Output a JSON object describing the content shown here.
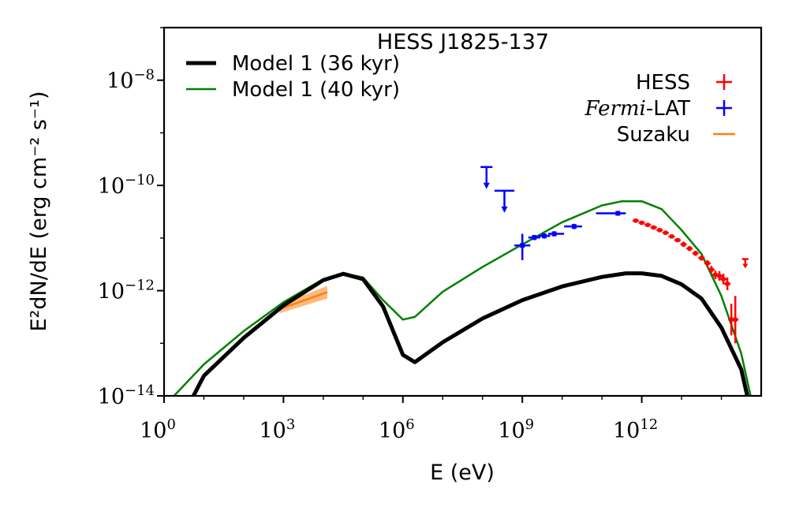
{
  "chart_data": {
    "type": "line",
    "title": "HESS J1825-137",
    "xlabel": "E (eV)",
    "ylabel": "E²dN/dE (erg cm⁻² s⁻¹)",
    "x_scale": "log",
    "y_scale": "log",
    "xlim": [
      1,
      1000000000000000.0
    ],
    "ylim": [
      1e-14,
      1e-07
    ],
    "x_ticks": [
      {
        "value": 1,
        "base": "10",
        "exp": "0"
      },
      {
        "value": 1000,
        "base": "10",
        "exp": "3"
      },
      {
        "value": 1000000,
        "base": "10",
        "exp": "6"
      },
      {
        "value": 1000000000,
        "base": "10",
        "exp": "9"
      },
      {
        "value": 1000000000000,
        "base": "10",
        "exp": "12"
      }
    ],
    "y_ticks": [
      {
        "value": 1e-08,
        "base": "10",
        "exp": "−8"
      },
      {
        "value": 1e-10,
        "base": "10",
        "exp": "−10"
      },
      {
        "value": 1e-12,
        "base": "10",
        "exp": "−12"
      },
      {
        "value": 1e-14,
        "base": "10",
        "exp": "−14"
      }
    ],
    "legend_left": {
      "placement": "top-left",
      "entries": [
        {
          "label": "Model 1 (36 kyr)",
          "color": "#000000",
          "style": "thick-line"
        },
        {
          "label": "Model 1 (40 kyr)",
          "color": "#008000",
          "style": "thin-line"
        }
      ]
    },
    "legend_right": {
      "placement": "top-right",
      "entries": [
        {
          "label": "HESS",
          "color": "#ff0000",
          "marker": "errorbar"
        },
        {
          "label_italic": "Fermi",
          "label": "-LAT",
          "color": "#0000ff",
          "marker": "errorbar"
        },
        {
          "label": "Suzaku",
          "color": "#ff7f0e",
          "marker": "line"
        }
      ]
    },
    "series": [
      {
        "name": "Model 1 (36 kyr)",
        "color": "#000000",
        "log_points": [
          [
            0.6,
            -14.2
          ],
          [
            1,
            -13.62
          ],
          [
            2,
            -12.9
          ],
          [
            3,
            -12.28
          ],
          [
            4,
            -11.8
          ],
          [
            4.5,
            -11.68
          ],
          [
            5,
            -11.78
          ],
          [
            5.5,
            -12.3
          ],
          [
            6,
            -13.22
          ],
          [
            6.3,
            -13.36
          ],
          [
            7,
            -12.98
          ],
          [
            8,
            -12.53
          ],
          [
            9,
            -12.18
          ],
          [
            10,
            -11.92
          ],
          [
            11,
            -11.74
          ],
          [
            11.6,
            -11.67
          ],
          [
            12,
            -11.67
          ],
          [
            12.5,
            -11.72
          ],
          [
            13,
            -11.88
          ],
          [
            13.5,
            -12.15
          ],
          [
            14,
            -12.7
          ],
          [
            14.5,
            -13.5
          ],
          [
            14.8,
            -14.5
          ],
          [
            14.95,
            -15.5
          ]
        ]
      },
      {
        "name": "Model 1 (40 kyr)",
        "color": "#008000",
        "log_points": [
          [
            0,
            -14.2
          ],
          [
            1,
            -13.4
          ],
          [
            2,
            -12.77
          ],
          [
            3,
            -12.22
          ],
          [
            4,
            -11.78
          ],
          [
            4.5,
            -11.67
          ],
          [
            5,
            -11.75
          ],
          [
            5.5,
            -12.18
          ],
          [
            6,
            -12.55
          ],
          [
            6.3,
            -12.5
          ],
          [
            7,
            -12.02
          ],
          [
            8,
            -11.55
          ],
          [
            9,
            -11.12
          ],
          [
            10,
            -10.7
          ],
          [
            11,
            -10.38
          ],
          [
            11.5,
            -10.3
          ],
          [
            12,
            -10.3
          ],
          [
            12.5,
            -10.45
          ],
          [
            13,
            -10.85
          ],
          [
            13.5,
            -11.3
          ],
          [
            14,
            -12.1
          ],
          [
            14.5,
            -13.2
          ],
          [
            14.85,
            -14.4
          ],
          [
            15,
            -15.5
          ]
        ]
      }
    ],
    "suzaku_band": {
      "log_x": [
        2.9,
        4.1
      ],
      "log_y_center": [
        -12.35,
        -12.03
      ],
      "log_halfwidth": [
        0.08,
        0.12
      ]
    },
    "fermi_points": [
      {
        "log_x": 9.0,
        "log_x_lo": 8.8,
        "log_x_hi": 9.2,
        "log_y": -11.14,
        "log_err_lo": 0.28,
        "log_err_hi": 0.22
      },
      {
        "log_x": 9.3,
        "log_x_lo": 9.15,
        "log_x_hi": 9.45,
        "log_y": -10.99,
        "log_err_lo": 0.05,
        "log_err_hi": 0.05
      },
      {
        "log_x": 9.55,
        "log_x_lo": 9.4,
        "log_x_hi": 9.7,
        "log_y": -10.96,
        "log_err_lo": 0.05,
        "log_err_hi": 0.05
      },
      {
        "log_x": 9.8,
        "log_x_lo": 9.65,
        "log_x_hi": 10.05,
        "log_y": -10.92,
        "log_err_lo": 0.05,
        "log_err_hi": 0.05
      },
      {
        "log_x": 10.3,
        "log_x_lo": 10.05,
        "log_x_hi": 10.5,
        "log_y": -10.78,
        "log_err_lo": 0.05,
        "log_err_hi": 0.05
      },
      {
        "log_x": 11.4,
        "log_x_lo": 10.85,
        "log_x_hi": 11.6,
        "log_y": -10.53,
        "log_err_lo": 0.03,
        "log_err_hi": 0.03
      }
    ],
    "fermi_upper_limits": [
      {
        "log_x": 8.1,
        "log_x_lo": 7.95,
        "log_x_hi": 8.25,
        "log_y": -9.65
      },
      {
        "log_x": 8.55,
        "log_x_lo": 8.3,
        "log_x_hi": 8.8,
        "log_y": -10.1
      }
    ],
    "hess_points": [
      {
        "log_x": 11.85,
        "log_y": -10.67,
        "log_err": 0.04
      },
      {
        "log_x": 12.0,
        "log_y": -10.71,
        "log_err": 0.04
      },
      {
        "log_x": 12.15,
        "log_y": -10.75,
        "log_err": 0.04
      },
      {
        "log_x": 12.3,
        "log_y": -10.8,
        "log_err": 0.04
      },
      {
        "log_x": 12.45,
        "log_y": -10.85,
        "log_err": 0.04
      },
      {
        "log_x": 12.6,
        "log_y": -10.9,
        "log_err": 0.04
      },
      {
        "log_x": 12.75,
        "log_y": -10.97,
        "log_err": 0.04
      },
      {
        "log_x": 12.9,
        "log_y": -11.04,
        "log_err": 0.04
      },
      {
        "log_x": 13.05,
        "log_y": -11.12,
        "log_err": 0.05
      },
      {
        "log_x": 13.2,
        "log_y": -11.2,
        "log_err": 0.05
      },
      {
        "log_x": 13.35,
        "log_y": -11.29,
        "log_err": 0.05
      },
      {
        "log_x": 13.5,
        "log_y": -11.38,
        "log_err": 0.05
      },
      {
        "log_x": 13.65,
        "log_y": -11.48,
        "log_err": 0.06
      },
      {
        "log_x": 13.75,
        "log_y": -11.6,
        "log_err": 0.07
      },
      {
        "log_x": 13.85,
        "log_y": -11.7,
        "log_err": 0.08
      },
      {
        "log_x": 13.95,
        "log_y": -11.72,
        "log_err": 0.09
      },
      {
        "log_x": 14.05,
        "log_y": -11.78,
        "log_err": 0.1
      },
      {
        "log_x": 14.15,
        "log_y": -11.87,
        "log_err": 0.12
      },
      {
        "log_x": 14.25,
        "log_y": -12.55,
        "log_err": 0.3
      },
      {
        "log_x": 14.35,
        "log_y": -12.55,
        "log_err": 0.45
      }
    ],
    "hess_upper_limits": [
      {
        "log_x": 14.6,
        "log_y": -11.4
      }
    ]
  }
}
